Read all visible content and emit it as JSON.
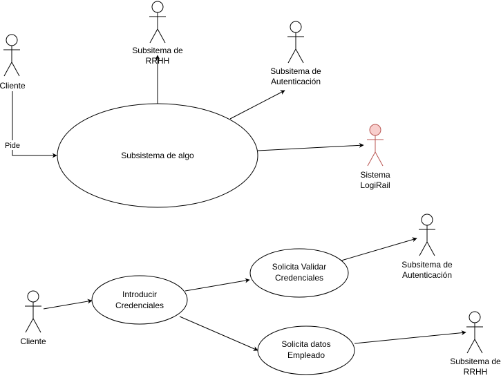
{
  "colors": {
    "stroke": "#000000",
    "highlight_stroke": "#b85450",
    "highlight_fill": "#f8cecc",
    "background": "#ffffff"
  },
  "top": {
    "actors": {
      "cliente": {
        "label": "Cliente"
      },
      "rrhh": {
        "label_line1": "Subsitema de",
        "label_line2": "RRHH"
      },
      "autenticacion": {
        "label_line1": "Subsitema de",
        "label_line2": "Autenticación"
      },
      "logirail": {
        "label_line1": "Sistema",
        "label_line2": "LogiRail"
      }
    },
    "use_case": {
      "label": "Subsistema de algo"
    },
    "edge_label": "Pide"
  },
  "bottom": {
    "actors": {
      "cliente": {
        "label": "Cliente"
      },
      "autenticacion": {
        "label_line1": "Subsitema de",
        "label_line2": "Autenticación"
      },
      "rrhh": {
        "label_line1": "Subsitema de",
        "label_line2": "RRHH"
      }
    },
    "use_cases": {
      "introducir": {
        "line1": "Introducir",
        "line2": "Credenciales"
      },
      "validar": {
        "line1": "Solicita Validar",
        "line2": "Credenciales"
      },
      "datos": {
        "line1": "Solicita datos",
        "line2": "Empleado"
      }
    }
  }
}
